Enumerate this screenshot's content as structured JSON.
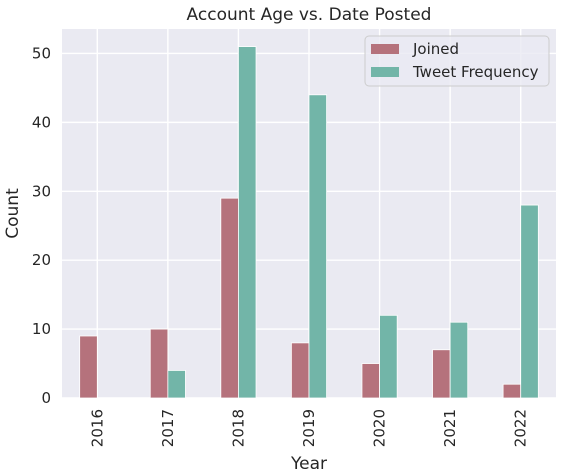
{
  "chart_data": {
    "type": "bar",
    "title": "Account Age vs. Date Posted",
    "xlabel": "Year",
    "ylabel": "Count",
    "categories": [
      "2016",
      "2017",
      "2018",
      "2019",
      "2020",
      "2021",
      "2022"
    ],
    "series": [
      {
        "name": "Joined",
        "values": [
          9,
          10,
          29,
          8,
          5,
          7,
          2
        ],
        "color": "#b5727c"
      },
      {
        "name": "Tweet Frequency",
        "values": [
          0,
          4,
          51,
          44,
          12,
          11,
          28
        ],
        "color": "#72b5a8"
      }
    ],
    "ylim": [
      0,
      53.55
    ],
    "yticks": [
      0,
      10,
      20,
      30,
      40,
      50
    ],
    "grid": true,
    "legend_position": "upper right",
    "background": "#eaeaf2"
  }
}
